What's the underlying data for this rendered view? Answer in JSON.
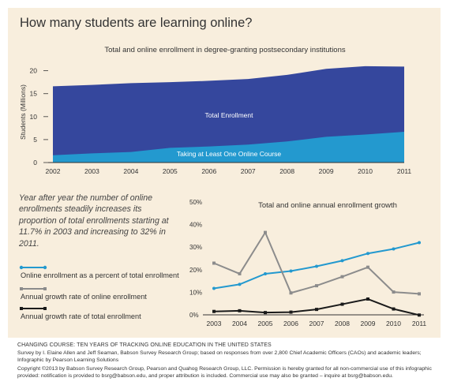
{
  "title": "How many students are learning online?",
  "chart_data": [
    {
      "type": "area",
      "title": "Total and online enrollment in degree-granting postsecondary institutions",
      "ylabel": "Students (Millions)",
      "xlabel": "",
      "x": [
        "2002",
        "2003",
        "2004",
        "2005",
        "2006",
        "2007",
        "2008",
        "2009",
        "2010",
        "2011"
      ],
      "ylim": [
        0,
        22
      ],
      "yticks": [
        0,
        5,
        10,
        15,
        20
      ],
      "grid": false,
      "series": [
        {
          "name": "Total Enrollment",
          "color": "#35479d",
          "values": [
            16.6,
            16.9,
            17.3,
            17.5,
            17.8,
            18.2,
            19.1,
            20.4,
            21.0,
            20.9
          ]
        },
        {
          "name": "Taking at Least One Online Course",
          "color": "#2399cf",
          "values": [
            1.6,
            2.0,
            2.3,
            3.2,
            3.5,
            3.9,
            4.6,
            5.6,
            6.1,
            6.7
          ]
        }
      ]
    },
    {
      "type": "line",
      "title": "Total and online annual enrollment growth",
      "x": [
        "2003",
        "2004",
        "2005",
        "2006",
        "2007",
        "2008",
        "2009",
        "2010",
        "2011"
      ],
      "ylim": [
        0,
        50
      ],
      "yticks": [
        "0%",
        "10%",
        "20%",
        "30%",
        "40%",
        "50%"
      ],
      "grid": false,
      "legend": "left",
      "series": [
        {
          "name": "Online enrollment as a percent of total enrollment",
          "color": "#2399cf",
          "marker": "circle",
          "values": [
            11.7,
            13.5,
            18.2,
            19.4,
            21.5,
            24.0,
            27.2,
            29.2,
            32.0
          ]
        },
        {
          "name": "Annual growth rate of online enrollment",
          "color": "#8c8c8c",
          "marker": "square",
          "values": [
            22.9,
            18.2,
            36.5,
            9.7,
            12.9,
            16.9,
            21.1,
            10.1,
            9.3
          ]
        },
        {
          "name": "Annual growth rate of total enrollment",
          "color": "#1a1a1a",
          "marker": "square",
          "values": [
            1.5,
            1.8,
            1.0,
            1.2,
            2.4,
            4.7,
            7.0,
            2.6,
            -0.1
          ]
        }
      ]
    }
  ],
  "quote": "Year after year the number of  online enrollments steadily increases its proportion of  total enrollments starting at 11.7% in 2003 and increasing to 32% in 2011.",
  "footer": {
    "title": "CHANGING COURSE: TEN YEARS OF TRACKING ONLINE EDUCATION IN THE UNITED STATES",
    "source": "Survey by I. Elaine Allen and Jeff Seaman, Babson Survey Research Group; based on responses from over 2,800 Chief Academic Officers (CAOs) and academic leaders; Infographic by Pearson Learning Solutions",
    "copyright": "Copyright ©2013 by Babson Survey Research Group, Pearson and Quahog Research Group, LLC. Permission is hereby granted for all non-commercial use of this infographic provided: notification is provided to bsrg@babson.edu, and proper attribution is included. Commercial use may also be granted – inquire at bsrg@babson.edu."
  }
}
